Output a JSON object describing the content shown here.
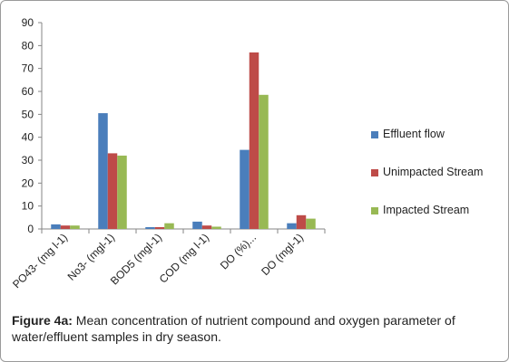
{
  "caption": {
    "label": "Figure 4a:",
    "text": "Mean concentration of nutrient compound  and oxygen parameter of water/effluent samples in dry season."
  },
  "chart_data": {
    "type": "bar",
    "categories": [
      "PO43- (mg l-1)",
      "No3- (mgl-1)",
      "BOD5 (mgl-1)",
      "COD (mg l-1)",
      "DO (%)...",
      "DO (mgl-1)"
    ],
    "series": [
      {
        "name": "Effluent flow",
        "color": "#4a7ebb",
        "values": [
          2.0,
          50.5,
          0.8,
          3.2,
          34.5,
          2.5
        ]
      },
      {
        "name": "Unimpacted Stream",
        "color": "#be4b48",
        "values": [
          1.5,
          33.0,
          0.8,
          1.5,
          77.0,
          6.0
        ]
      },
      {
        "name": "Impacted Stream",
        "color": "#98b954",
        "values": [
          1.5,
          32.0,
          2.5,
          1.0,
          58.5,
          4.5
        ]
      }
    ],
    "ylim": [
      0,
      90
    ],
    "yticks": [
      0,
      10,
      20,
      30,
      40,
      50,
      60,
      70,
      80,
      90
    ],
    "grid": false,
    "legend": "right"
  }
}
